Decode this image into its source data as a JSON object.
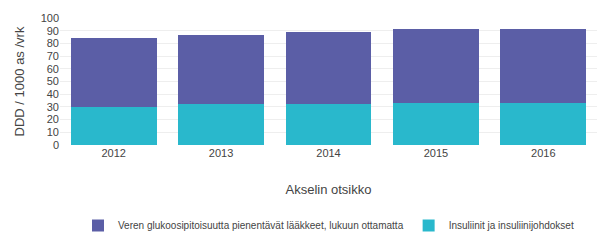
{
  "chart_data": {
    "type": "bar",
    "stacked": true,
    "xlabel": "Akselin otsikko",
    "ylabel": "DDD / 1000 as /vrk",
    "categories": [
      "2012",
      "2013",
      "2014",
      "2015",
      "2016"
    ],
    "series": [
      {
        "name": "Insuliinit ja insuliinijohdokset",
        "color": "#29b8cc",
        "values": [
          30,
          32,
          32,
          33,
          33
        ]
      },
      {
        "name": "Veren glukoosipitoisuutta pienentävät lääkkeet, lukuun ottamatta",
        "color": "#5b5ea6",
        "values": [
          54,
          55,
          57,
          58,
          58
        ]
      }
    ],
    "ylim": [
      0,
      100
    ],
    "yticks": [
      0,
      10,
      20,
      30,
      40,
      50,
      60,
      70,
      80,
      90,
      100
    ],
    "grid": true,
    "legend": "bottom"
  }
}
